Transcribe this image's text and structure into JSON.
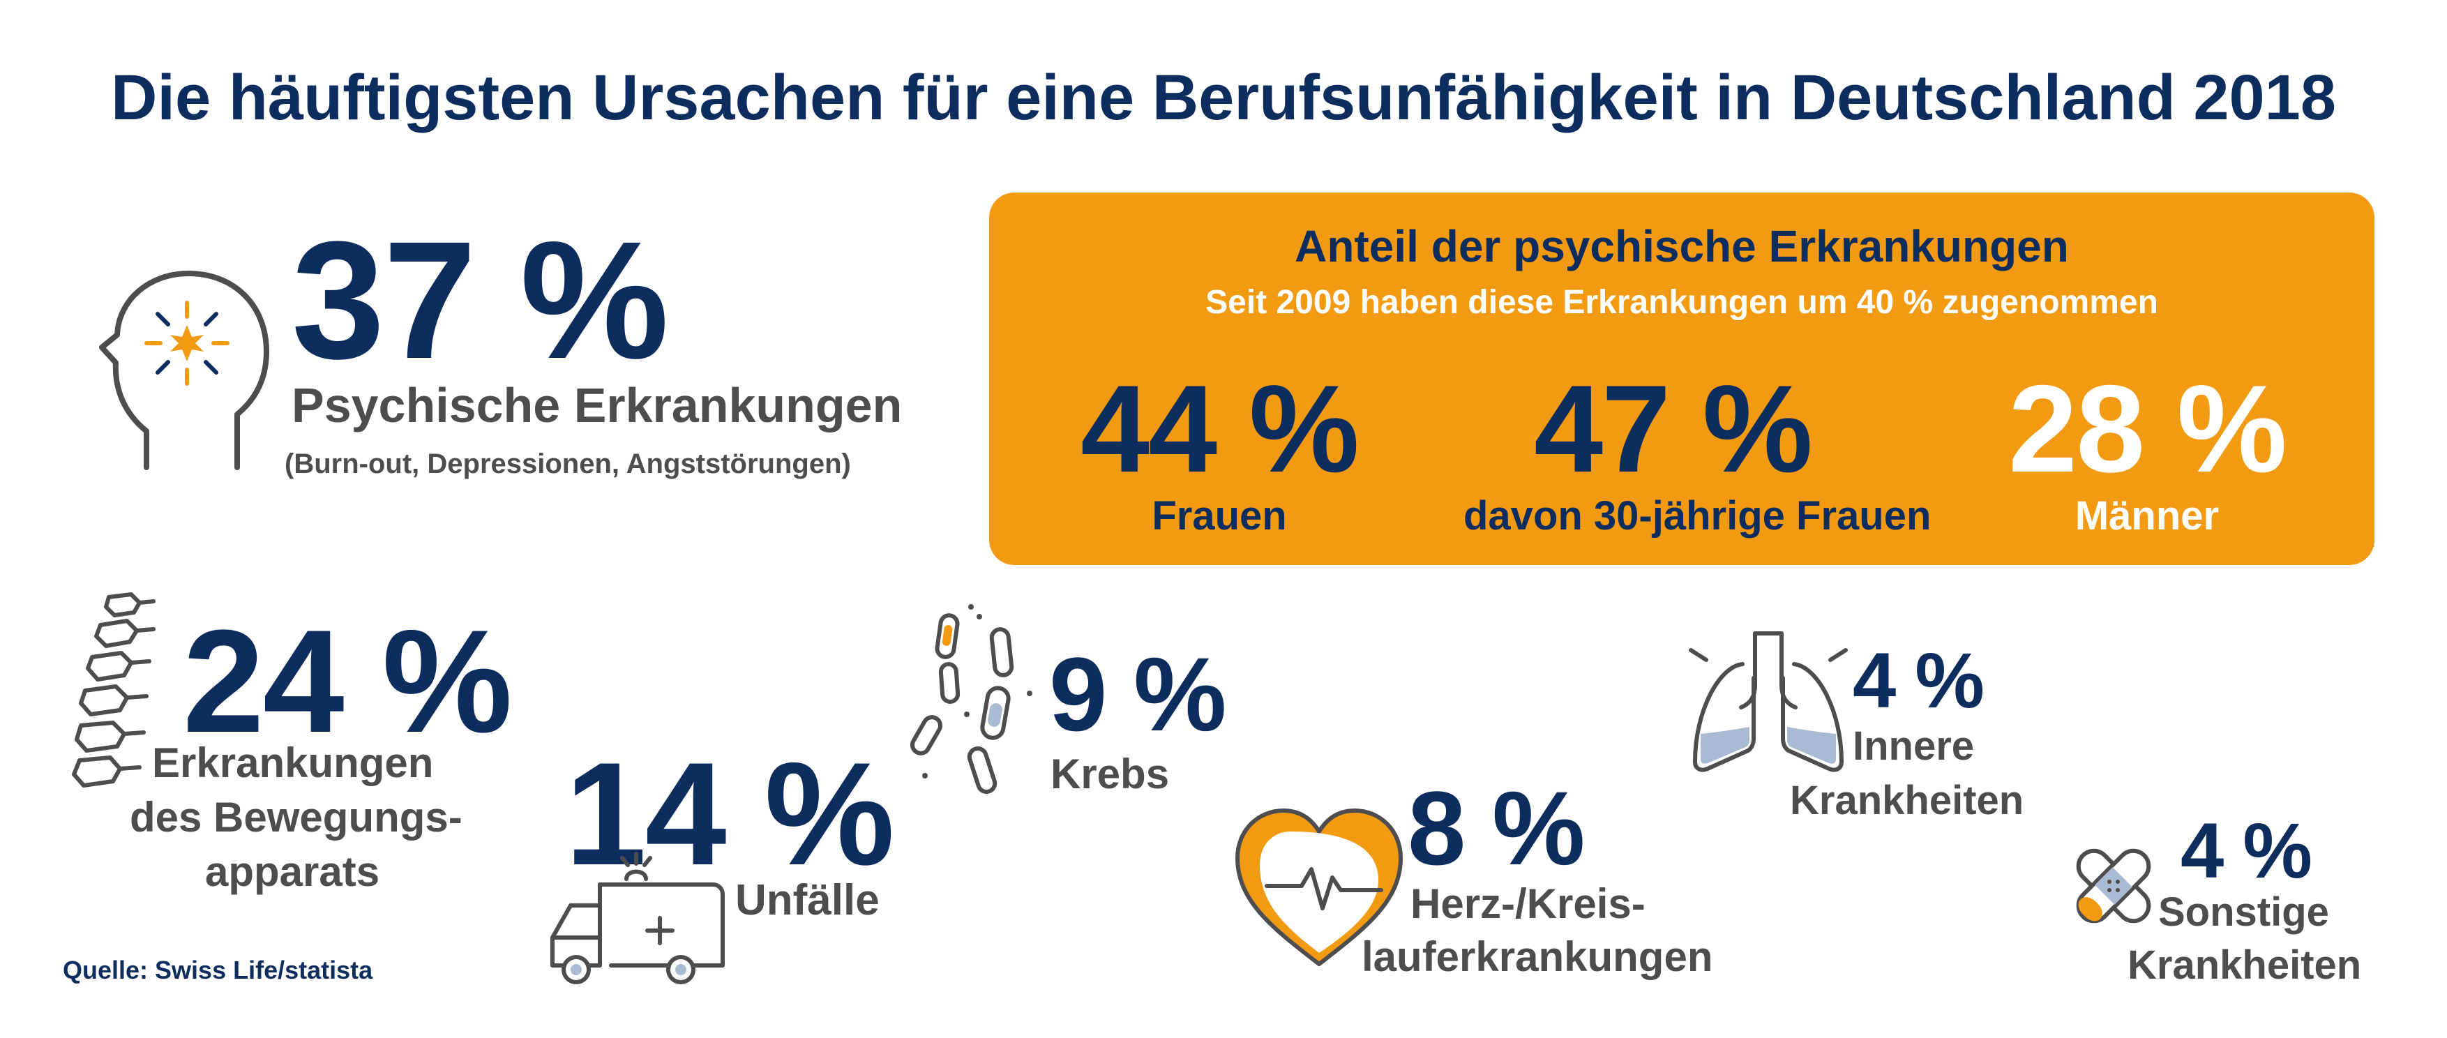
{
  "title": "Die häuftigsten Ursachen für eine Berufsunfähigkeit in Deutschland 2018",
  "colors": {
    "navy": "#0d2d5e",
    "orange": "#f29a12",
    "gray": "#4d4d4f",
    "light_blue": "#a9bad3",
    "white": "#ffffff"
  },
  "items": {
    "psychisch": {
      "value": "37 %",
      "label": "Psychische Erkrankungen",
      "sublabel": "(Burn-out, Depressionen, Angststörungen)",
      "icon": "head-burst-icon"
    },
    "bewegung": {
      "value": "24 %",
      "label_line1": "Erkrankungen",
      "label_line2": "des Bewegungs-",
      "label_line3": "apparats",
      "icon": "spine-icon"
    },
    "unfaelle": {
      "value": "14 %",
      "label": "Unfälle",
      "icon": "ambulance-icon"
    },
    "krebs": {
      "value": "9 %",
      "label": "Krebs",
      "icon": "cells-icon"
    },
    "herz": {
      "value": "8 %",
      "label_line1": "Herz-/Kreis-",
      "label_line2": "lauferkrankungen",
      "icon": "heart-pulse-icon"
    },
    "innere": {
      "value": "4 %",
      "label_line1": "Innere",
      "label_line2": "Krankheiten",
      "icon": "lungs-icon"
    },
    "sonstige": {
      "value": "4 %",
      "label_line1": "Sonstige",
      "label_line2": "Krankheiten",
      "icon": "bandage-icon"
    }
  },
  "psych_box": {
    "heading": "Anteil der psychische Erkrankungen",
    "subheading": "Seit 2009 haben diese Erkrankungen um 40 % zugenommen",
    "stats": [
      {
        "value": "44 %",
        "label": "Frauen"
      },
      {
        "value": "47 %",
        "label": "davon 30-jährige Frauen"
      },
      {
        "value": "28 %",
        "label": "Männer"
      }
    ]
  },
  "source": "Quelle: Swiss Life/statista"
}
